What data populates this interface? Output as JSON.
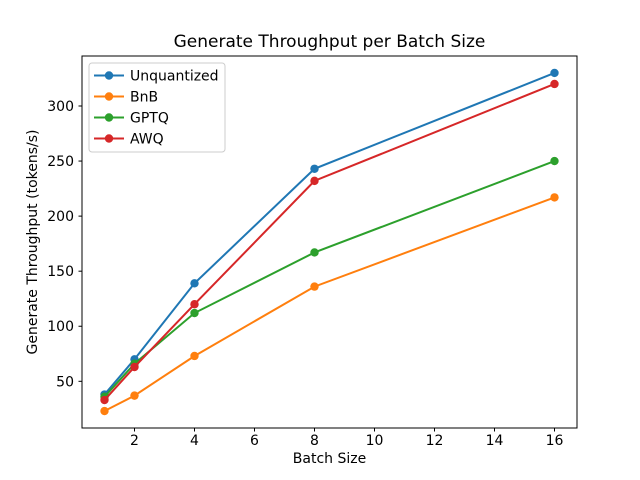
{
  "chart_data": {
    "type": "line",
    "title": "Generate Throughput per Batch Size",
    "xlabel": "Batch Size",
    "ylabel": "Generate Throughput (tokens/s)",
    "x": [
      1,
      2,
      4,
      8,
      16
    ],
    "series": [
      {
        "name": "Unquantized",
        "color": "#1f77b4",
        "values": [
          38,
          70,
          139,
          243,
          330
        ]
      },
      {
        "name": "BnB",
        "color": "#ff7f0e",
        "values": [
          23,
          37,
          73,
          136,
          217
        ]
      },
      {
        "name": "GPTQ",
        "color": "#2ca02c",
        "values": [
          36,
          66,
          112,
          167,
          250
        ]
      },
      {
        "name": "AWQ",
        "color": "#d62728",
        "values": [
          33,
          63,
          120,
          232,
          320
        ]
      }
    ],
    "xticks": [
      2,
      4,
      6,
      8,
      10,
      12,
      14,
      16
    ],
    "yticks": [
      50,
      100,
      150,
      200,
      250,
      300
    ],
    "xlim": [
      0.25,
      16.75
    ],
    "ylim": [
      7.6,
      345.4
    ],
    "grid": false,
    "marker": "o",
    "legend_position": "upper left",
    "legend_labels": [
      "Unquantized",
      "BnB",
      "GPTQ",
      "AWQ"
    ],
    "colors": {
      "axes": "#000000",
      "background": "#ffffff",
      "legend_border": "#cccccc"
    }
  }
}
